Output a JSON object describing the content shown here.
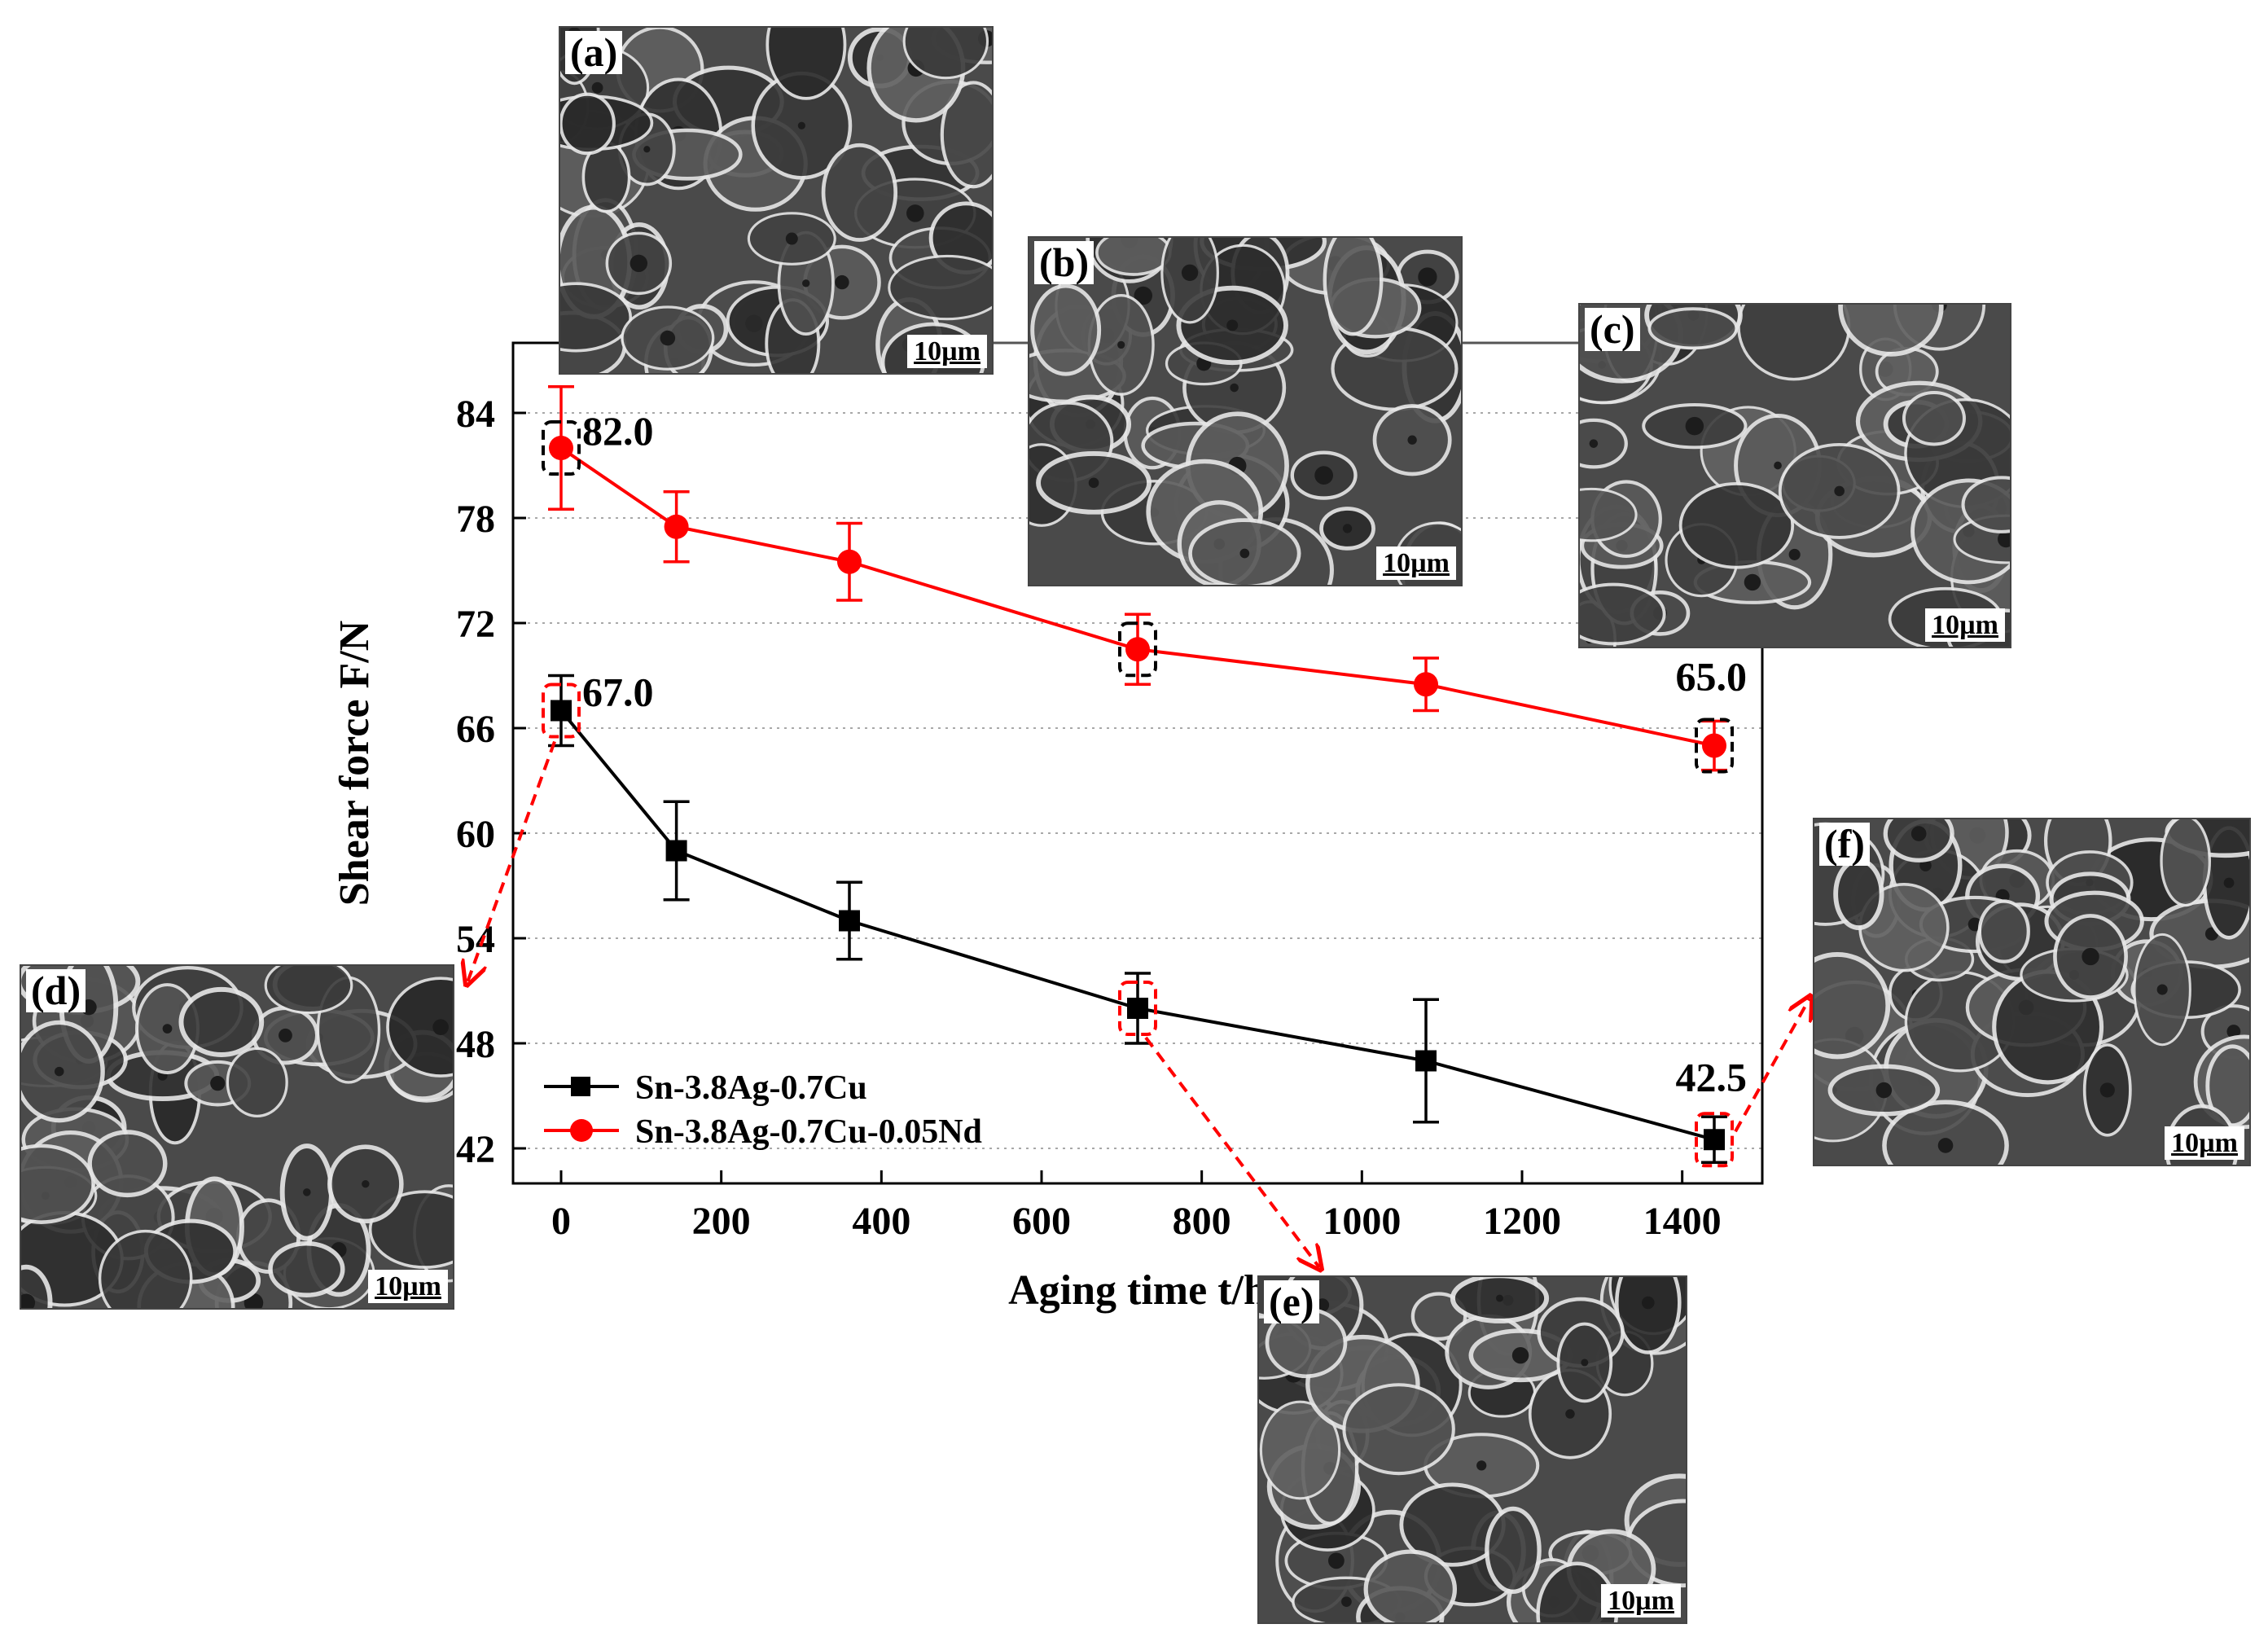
{
  "chart_data": {
    "type": "line",
    "xlabel": "Aging time t/h",
    "ylabel": "Shear force F/N",
    "xlim": [
      -60,
      1500
    ],
    "ylim": [
      40,
      88
    ],
    "xticks": [
      0,
      200,
      400,
      600,
      800,
      1000,
      1200,
      1400
    ],
    "yticks": [
      42,
      48,
      54,
      60,
      66,
      72,
      78,
      84
    ],
    "grid": "horizontal dotted",
    "legend_position": "bottom-left",
    "series": [
      {
        "name": "Sn-3.8Ag-0.7Cu",
        "color": "#000000",
        "marker": "square",
        "x": [
          0,
          144,
          360,
          720,
          1080,
          1440
        ],
        "y": [
          67.0,
          59.0,
          55.0,
          50.0,
          47.0,
          42.5
        ],
        "err": [
          2.0,
          2.8,
          2.2,
          2.0,
          3.5,
          1.3
        ]
      },
      {
        "name": "Sn-3.8Ag-0.7Cu-0.05Nd",
        "color": "#ff0000",
        "marker": "circle",
        "x": [
          0,
          144,
          360,
          720,
          1080,
          1440
        ],
        "y": [
          82.0,
          77.5,
          75.5,
          70.5,
          68.5,
          65.0
        ],
        "err": [
          3.5,
          2.0,
          2.2,
          2.0,
          1.5,
          1.4
        ]
      }
    ],
    "annotations": [
      {
        "text": "82.0",
        "series": 1,
        "point": 0
      },
      {
        "text": "67.0",
        "series": 0,
        "point": 0
      },
      {
        "text": "65.0",
        "series": 1,
        "point": 5
      },
      {
        "text": "42.5",
        "series": 0,
        "point": 5
      }
    ],
    "highlight_boxes": [
      {
        "series": 1,
        "point": 0,
        "color": "#000000"
      },
      {
        "series": 1,
        "point": 3,
        "color": "#000000"
      },
      {
        "series": 1,
        "point": 5,
        "color": "#000000"
      },
      {
        "series": 0,
        "point": 0,
        "color": "#ff0000"
      },
      {
        "series": 0,
        "point": 3,
        "color": "#ff0000"
      },
      {
        "series": 0,
        "point": 5,
        "color": "#ff0000"
      }
    ]
  },
  "micrographs": [
    {
      "label": "(a)",
      "scale_bar": "10µm"
    },
    {
      "label": "(b)",
      "scale_bar": "10µm"
    },
    {
      "label": "(c)",
      "scale_bar": "10µm"
    },
    {
      "label": "(d)",
      "scale_bar": "10µm"
    },
    {
      "label": "(e)",
      "scale_bar": "10µm"
    },
    {
      "label": "(f)",
      "scale_bar": "10µm"
    }
  ]
}
